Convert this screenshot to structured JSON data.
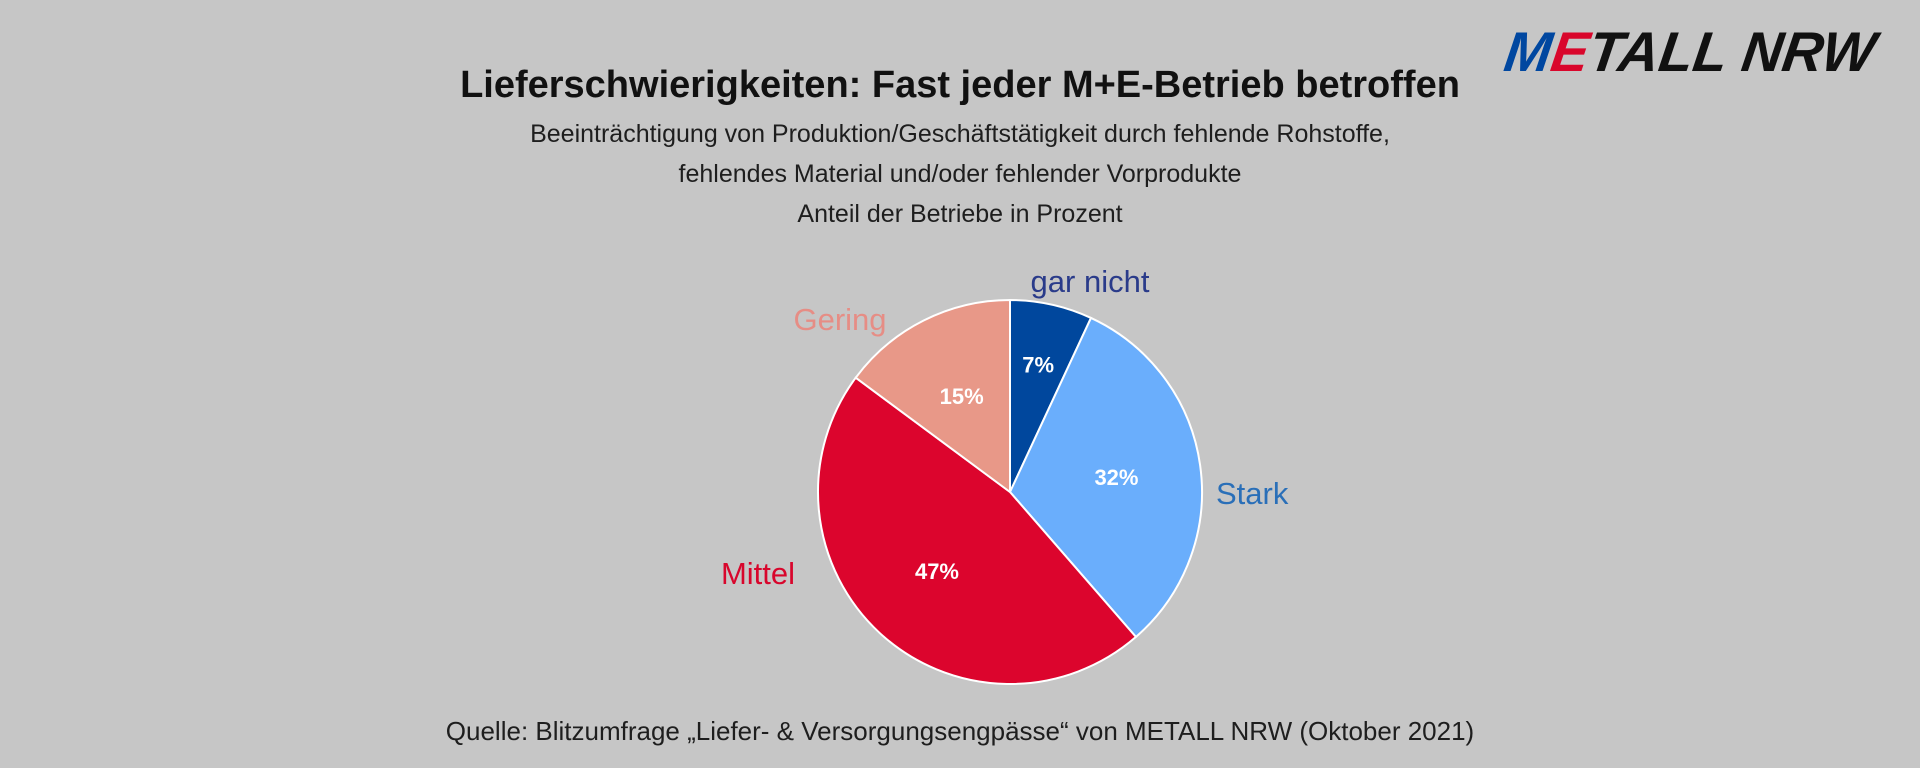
{
  "logo": {
    "part_m": "M",
    "part_e": "E",
    "part_rest": "TALL NRW"
  },
  "header": {
    "title": "Lieferschwierigkeiten: Fast jeder M+E-Betrieb betroffen",
    "subtitle_line1": "Beeinträchtigung von Produktion/Geschäftstätigkeit durch fehlende Rohstoffe,",
    "subtitle_line2": "fehlendes Material und/oder fehlender Vorprodukte",
    "subtitle_line3": "Anteil der Betriebe in Prozent"
  },
  "footer": {
    "source": "Quelle: Blitzumfrage „Liefer- & Versorgungsengpässe“ von METALL NRW (Oktober 2021)"
  },
  "chart_data": {
    "type": "pie",
    "title": "Lieferschwierigkeiten: Fast jeder M+E-Betrieb betroffen",
    "unit": "%",
    "slices": [
      {
        "name": "gar nicht",
        "value": 7,
        "label": "7%",
        "color": "#00479d",
        "label_color": "#2a3b8a"
      },
      {
        "name": "Stark",
        "value": 32,
        "label": "32%",
        "color": "#6aaefc",
        "label_color": "#2a6fb8"
      },
      {
        "name": "Mittel",
        "value": 47,
        "label": "47%",
        "color": "#dc052d",
        "label_color": "#d8062c"
      },
      {
        "name": "Gering",
        "value": 15,
        "label": "15%",
        "color": "#e89888",
        "label_color": "#e68d85"
      }
    ]
  }
}
